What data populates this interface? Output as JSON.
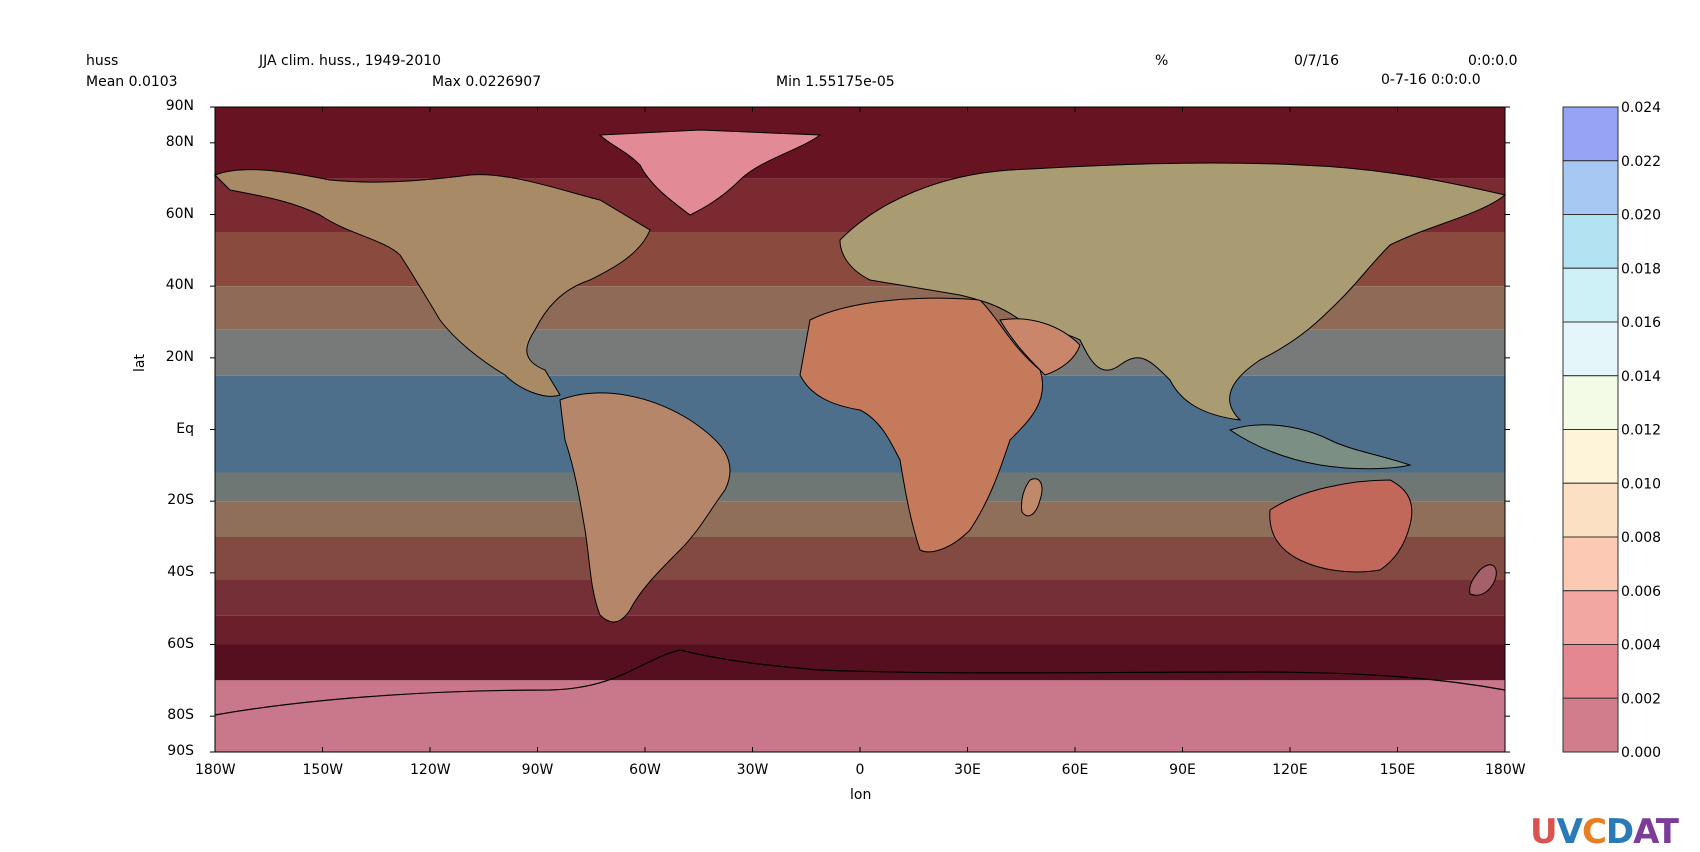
{
  "header": {
    "variable": "huss",
    "title": "JJA clim. huss., 1949-2010",
    "units": "%",
    "date": "0/7/16",
    "time": "0:0:0.0",
    "mean": "Mean 0.0103",
    "max": "Max 0.0226907",
    "min": "Min 1.55175e-05",
    "datetime": "0-7-16 0:0:0.0"
  },
  "axes": {
    "xlabel": "lon",
    "ylabel": "lat",
    "xticks": [
      "180W",
      "150W",
      "120W",
      "90W",
      "60W",
      "30W",
      "0",
      "30E",
      "60E",
      "90E",
      "120E",
      "150E",
      "180W"
    ],
    "yticks": [
      "90N",
      "80N",
      "60N",
      "40N",
      "20N",
      "Eq",
      "20S",
      "40S",
      "60S",
      "80S",
      "90S"
    ]
  },
  "legend": {
    "labels": [
      "0.024",
      "0.022",
      "0.020",
      "0.018",
      "0.016",
      "0.014",
      "0.012",
      "0.010",
      "0.008",
      "0.006",
      "0.004",
      "0.002",
      "0.000"
    ],
    "colors": [
      "#97a3f4",
      "#a6c8f2",
      "#b3e2f3",
      "#cdf1f6",
      "#e5f6fb",
      "#f3fbe7",
      "#fdf4da",
      "#fbe0c4",
      "#fbc9b4",
      "#f2a7a2",
      "#e48790",
      "#d07d8c"
    ]
  },
  "chart_data": {
    "type": "heatmap",
    "title": "JJA clim. huss., 1949-2010",
    "xlabel": "lon",
    "ylabel": "lat",
    "xlim": [
      -180,
      180
    ],
    "ylim": [
      -90,
      90
    ],
    "levels": [
      0.0,
      0.002,
      0.004,
      0.006,
      0.008,
      0.01,
      0.012,
      0.014,
      0.016,
      0.018,
      0.02,
      0.022,
      0.024
    ],
    "ocean_band_fill_by_lat": [
      {
        "lat": [
          70,
          90
        ],
        "color": "#671322"
      },
      {
        "lat": [
          55,
          70
        ],
        "color": "#7a2a30"
      },
      {
        "lat": [
          40,
          55
        ],
        "color": "#8a4a3e"
      },
      {
        "lat": [
          28,
          40
        ],
        "color": "#8f6a56"
      },
      {
        "lat": [
          15,
          28
        ],
        "color": "#777a78"
      },
      {
        "lat": [
          -12,
          15
        ],
        "color": "#4d6f8c"
      },
      {
        "lat": [
          -20,
          -12
        ],
        "color": "#6f7774"
      },
      {
        "lat": [
          -30,
          -20
        ],
        "color": "#8f6e5a"
      },
      {
        "lat": [
          -42,
          -30
        ],
        "color": "#834a42"
      },
      {
        "lat": [
          -52,
          -42
        ],
        "color": "#743036"
      },
      {
        "lat": [
          -60,
          -52
        ],
        "color": "#6a1f2b"
      },
      {
        "lat": [
          -70,
          -60
        ],
        "color": "#560f1e"
      },
      {
        "lat": [
          -90,
          -70
        ],
        "color": "#c9778a"
      }
    ]
  },
  "logo": {
    "text": "UV-CDAT"
  }
}
